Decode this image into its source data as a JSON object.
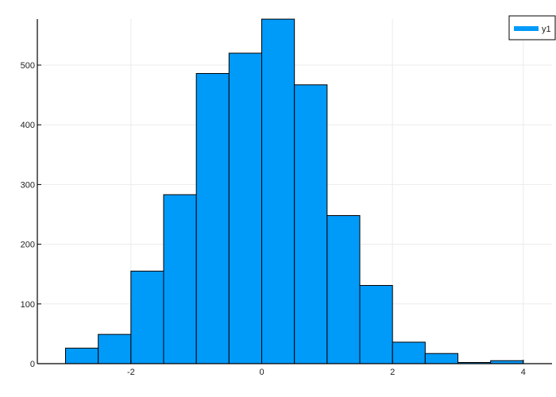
{
  "chart_data": {
    "type": "bar",
    "subtype": "histogram",
    "title": "",
    "xlabel": "",
    "ylabel": "",
    "bin_edges": [
      -3.0,
      -2.5,
      -2.0,
      -1.5,
      -1.0,
      -0.5,
      0.0,
      0.5,
      1.0,
      1.5,
      2.0,
      2.5,
      3.0,
      3.5,
      4.0
    ],
    "categories": [
      "-3.0 to -2.5",
      "-2.5 to -2.0",
      "-2.0 to -1.5",
      "-1.5 to -1.0",
      "-1.0 to -0.5",
      "-0.5 to 0.0",
      "0.0 to 0.5",
      "0.5 to 1.0",
      "1.0 to 1.5",
      "1.5 to 2.0",
      "2.0 to 2.5",
      "2.5 to 3.0",
      "3.0 to 3.5",
      "3.5 to 4.0"
    ],
    "series": [
      {
        "name": "y1",
        "color": "#009AF9",
        "values": [
          26,
          49,
          155,
          283,
          486,
          520,
          577,
          467,
          248,
          131,
          36,
          17,
          2,
          5
        ]
      }
    ],
    "xlim": [
      -3.45,
      4.45
    ],
    "ylim": [
      0,
      577
    ],
    "x_ticks": [
      -2,
      0,
      2,
      4
    ],
    "x_tick_labels": [
      "-2",
      "0",
      "2",
      "4"
    ],
    "y_ticks": [
      0,
      100,
      200,
      300,
      400,
      500
    ],
    "y_tick_labels": [
      "0",
      "100",
      "200",
      "300",
      "400",
      "500"
    ],
    "grid": true,
    "legend": {
      "position": "top-right",
      "entries": [
        "y1"
      ]
    }
  },
  "legend": {
    "label": "y1",
    "color": "#009AF9"
  },
  "colors": {
    "bar_fill": "#009AF9",
    "bar_stroke": "#000000",
    "grid": "#EBEBEB",
    "axis": "#000000"
  }
}
